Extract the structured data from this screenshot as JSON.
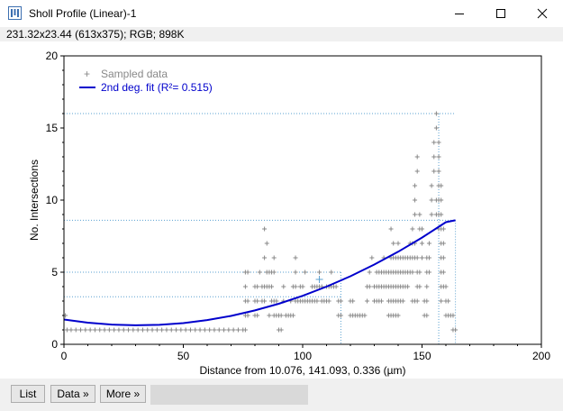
{
  "window": {
    "title": "Sholl Profile (Linear)-1",
    "info": "231.32x23.44   (613x375); RGB; 898K"
  },
  "buttons": {
    "list": "List",
    "data": "Data »",
    "more": "More »"
  },
  "chart_data": {
    "type": "scatter",
    "xlabel": "Distance from 10.076, 141.093, 0.336 (µm)",
    "ylabel": "No. Intersections",
    "xlim": [
      0,
      200
    ],
    "ylim": [
      0,
      20
    ],
    "xticks": [
      "0",
      "50",
      "100",
      "150",
      "200"
    ],
    "yticks": [
      "0",
      "5",
      "10",
      "15",
      "20"
    ],
    "grid": false,
    "legend_position": "top-left",
    "legend": [
      {
        "label": "Sampled data",
        "marker": "+",
        "color": "#888888"
      },
      {
        "label": "2nd deg. fit (R²= 0.515)",
        "marker": "line",
        "color": "#0000cc"
      }
    ],
    "series": [
      {
        "name": "Sampled data",
        "color": "#888888",
        "points": [
          [
            0.6,
            2
          ],
          [
            1.3,
            1
          ],
          [
            3,
            1
          ],
          [
            5,
            1
          ],
          [
            7,
            1
          ],
          [
            9,
            1
          ],
          [
            11,
            1
          ],
          [
            13,
            1
          ],
          [
            15,
            1
          ],
          [
            17,
            1
          ],
          [
            19,
            1
          ],
          [
            21,
            1
          ],
          [
            23,
            1
          ],
          [
            25,
            1
          ],
          [
            27,
            1
          ],
          [
            29,
            1
          ],
          [
            31,
            1
          ],
          [
            33,
            1
          ],
          [
            35,
            1
          ],
          [
            37,
            1
          ],
          [
            39,
            1
          ],
          [
            41,
            1
          ],
          [
            43,
            1
          ],
          [
            45,
            1
          ],
          [
            47,
            1
          ],
          [
            49,
            1
          ],
          [
            51,
            1
          ],
          [
            53,
            1
          ],
          [
            55,
            1
          ],
          [
            57,
            1
          ],
          [
            59,
            1
          ],
          [
            61,
            1
          ],
          [
            63,
            1
          ],
          [
            65,
            1
          ],
          [
            67,
            1
          ],
          [
            69,
            1
          ],
          [
            71,
            1
          ],
          [
            73,
            1
          ],
          [
            75,
            1
          ],
          [
            76,
            1
          ],
          [
            76,
            2
          ],
          [
            77,
            2
          ],
          [
            76,
            3
          ],
          [
            77,
            3
          ],
          [
            76,
            4
          ],
          [
            76,
            5
          ],
          [
            77,
            5
          ],
          [
            80,
            2
          ],
          [
            81,
            2
          ],
          [
            80,
            3
          ],
          [
            81,
            3
          ],
          [
            80,
            4
          ],
          [
            81,
            4
          ],
          [
            82,
            5
          ],
          [
            83,
            3
          ],
          [
            84,
            3
          ],
          [
            83,
            4
          ],
          [
            84,
            4
          ],
          [
            85,
            4
          ],
          [
            85,
            5
          ],
          [
            86,
            5
          ],
          [
            84,
            6
          ],
          [
            85,
            7
          ],
          [
            84,
            8
          ],
          [
            86,
            2
          ],
          [
            87,
            3
          ],
          [
            86,
            4
          ],
          [
            87,
            4
          ],
          [
            88,
            2
          ],
          [
            89,
            2
          ],
          [
            88,
            3
          ],
          [
            89,
            3
          ],
          [
            87,
            5
          ],
          [
            88,
            6
          ],
          [
            88,
            5
          ],
          [
            90,
            2
          ],
          [
            91,
            2
          ],
          [
            92,
            3
          ],
          [
            92,
            4
          ],
          [
            90,
            1
          ],
          [
            91,
            1
          ],
          [
            93,
            2
          ],
          [
            94,
            2
          ],
          [
            95,
            2
          ],
          [
            96,
            2
          ],
          [
            95,
            3
          ],
          [
            97,
            3
          ],
          [
            96,
            4
          ],
          [
            97,
            4
          ],
          [
            97,
            5
          ],
          [
            97,
            6
          ],
          [
            98,
            3
          ],
          [
            99,
            3
          ],
          [
            100,
            3
          ],
          [
            101,
            3
          ],
          [
            102,
            3
          ],
          [
            103,
            3
          ],
          [
            104,
            3
          ],
          [
            105,
            3
          ],
          [
            106,
            3
          ],
          [
            108,
            3
          ],
          [
            109,
            3
          ],
          [
            99,
            4
          ],
          [
            100,
            4
          ],
          [
            104,
            4
          ],
          [
            105,
            4
          ],
          [
            106,
            4
          ],
          [
            107,
            4
          ],
          [
            108,
            4
          ],
          [
            107,
            5
          ],
          [
            101,
            5
          ],
          [
            110,
            3
          ],
          [
            111,
            3
          ],
          [
            110,
            4
          ],
          [
            111,
            4
          ],
          [
            112,
            4
          ],
          [
            113,
            4
          ],
          [
            112,
            5
          ],
          [
            114,
            4
          ],
          [
            115,
            2
          ],
          [
            116,
            2
          ],
          [
            115,
            3
          ],
          [
            116,
            3
          ],
          [
            120,
            2
          ],
          [
            121,
            2
          ],
          [
            120,
            3
          ],
          [
            121,
            3
          ],
          [
            122,
            2
          ],
          [
            123,
            2
          ],
          [
            124,
            2
          ],
          [
            125,
            2
          ],
          [
            126,
            2
          ],
          [
            127,
            3
          ],
          [
            127,
            4
          ],
          [
            128,
            4
          ],
          [
            128,
            5
          ],
          [
            129,
            6
          ],
          [
            130,
            3
          ],
          [
            131,
            3
          ],
          [
            132,
            3
          ],
          [
            133,
            3
          ],
          [
            130,
            4
          ],
          [
            131,
            4
          ],
          [
            132,
            4
          ],
          [
            133,
            4
          ],
          [
            134,
            4
          ],
          [
            135,
            4
          ],
          [
            131,
            5
          ],
          [
            132,
            5
          ],
          [
            133,
            5
          ],
          [
            134,
            5
          ],
          [
            135,
            5
          ],
          [
            134,
            6
          ],
          [
            136,
            2
          ],
          [
            137,
            2
          ],
          [
            138,
            2
          ],
          [
            139,
            2
          ],
          [
            140,
            2
          ],
          [
            136,
            3
          ],
          [
            137,
            3
          ],
          [
            138,
            3
          ],
          [
            139,
            3
          ],
          [
            140,
            3
          ],
          [
            141,
            3
          ],
          [
            142,
            3
          ],
          [
            136,
            4
          ],
          [
            137,
            4
          ],
          [
            138,
            4
          ],
          [
            139,
            4
          ],
          [
            140,
            4
          ],
          [
            141,
            4
          ],
          [
            142,
            4
          ],
          [
            143,
            4
          ],
          [
            144,
            4
          ],
          [
            136,
            5
          ],
          [
            137,
            5
          ],
          [
            138,
            5
          ],
          [
            139,
            5
          ],
          [
            140,
            5
          ],
          [
            141,
            5
          ],
          [
            142,
            5
          ],
          [
            143,
            5
          ],
          [
            144,
            5
          ],
          [
            145,
            5
          ],
          [
            146,
            5
          ],
          [
            137,
            6
          ],
          [
            138,
            6
          ],
          [
            139,
            6
          ],
          [
            140,
            6
          ],
          [
            141,
            6
          ],
          [
            142,
            6
          ],
          [
            138,
            7
          ],
          [
            140,
            7
          ],
          [
            137,
            8
          ],
          [
            143,
            6
          ],
          [
            144,
            6
          ],
          [
            145,
            6
          ],
          [
            146,
            6
          ],
          [
            147,
            6
          ],
          [
            145,
            7
          ],
          [
            146,
            7
          ],
          [
            147,
            7
          ],
          [
            146,
            8
          ],
          [
            146,
            3
          ],
          [
            147,
            3
          ],
          [
            148,
            3
          ],
          [
            148,
            4
          ],
          [
            148,
            5
          ],
          [
            148,
            6
          ],
          [
            149,
            5
          ],
          [
            149,
            4
          ],
          [
            147,
            9
          ],
          [
            147,
            10
          ],
          [
            147,
            11
          ],
          [
            148,
            12
          ],
          [
            148,
            13
          ],
          [
            149,
            8
          ],
          [
            149,
            9
          ],
          [
            150,
            7
          ],
          [
            150,
            8
          ],
          [
            150,
            6
          ],
          [
            151,
            2
          ],
          [
            152,
            2
          ],
          [
            151,
            3
          ],
          [
            152,
            3
          ],
          [
            152,
            4
          ],
          [
            152,
            5
          ],
          [
            152,
            6
          ],
          [
            153,
            6
          ],
          [
            153,
            7
          ],
          [
            153,
            5
          ],
          [
            154,
            9
          ],
          [
            154,
            10
          ],
          [
            154,
            11
          ],
          [
            155,
            12
          ],
          [
            155,
            13
          ],
          [
            155,
            14
          ],
          [
            156,
            15
          ],
          [
            156,
            16
          ],
          [
            156,
            10
          ],
          [
            156,
            9
          ],
          [
            157,
            14
          ],
          [
            157,
            13
          ],
          [
            157,
            12
          ],
          [
            157,
            11
          ],
          [
            157,
            10
          ],
          [
            157,
            9
          ],
          [
            157,
            8
          ],
          [
            158,
            3
          ],
          [
            158,
            4
          ],
          [
            158,
            5
          ],
          [
            158,
            6
          ],
          [
            158,
            7
          ],
          [
            158,
            8
          ],
          [
            158,
            9
          ],
          [
            158,
            10
          ],
          [
            158,
            11
          ],
          [
            159,
            4
          ],
          [
            159,
            5
          ],
          [
            159,
            6
          ],
          [
            159,
            7
          ],
          [
            159,
            8
          ],
          [
            160,
            3
          ],
          [
            160,
            4
          ],
          [
            160,
            2
          ],
          [
            161,
            2
          ],
          [
            161,
            3
          ],
          [
            162,
            2
          ],
          [
            163,
            2
          ],
          [
            163,
            1
          ],
          [
            164,
            1
          ]
        ]
      },
      {
        "name": "2nd deg. fit (R²= 0.515)",
        "color": "#0000cc",
        "type": "line",
        "x": [
          0,
          10,
          20,
          30,
          40,
          50,
          60,
          70,
          80,
          90,
          100,
          110,
          120,
          130,
          140,
          150,
          160,
          164
        ],
        "y": [
          1.72,
          1.5,
          1.37,
          1.32,
          1.35,
          1.47,
          1.68,
          1.97,
          2.35,
          2.81,
          3.36,
          4.0,
          4.72,
          5.53,
          6.42,
          7.4,
          8.47,
          8.6
        ]
      }
    ],
    "annotations": {
      "dotted_hlines": [
        16,
        8.6,
        5,
        3.3
      ],
      "dotted_vlines": [
        116,
        157,
        164
      ],
      "centroid_marker": [
        107,
        4.5
      ]
    }
  },
  "colors": {
    "titlebar_bg": "#ffffff",
    "window_bg": "#f0f0f0",
    "fit_line": "#0000cc",
    "data_marker": "#888888",
    "reference_lines": "#5aa0d0"
  },
  "icons": {
    "app": "imagej-icon",
    "minimize": "minimize-icon",
    "maximize": "maximize-icon",
    "close": "close-icon"
  }
}
